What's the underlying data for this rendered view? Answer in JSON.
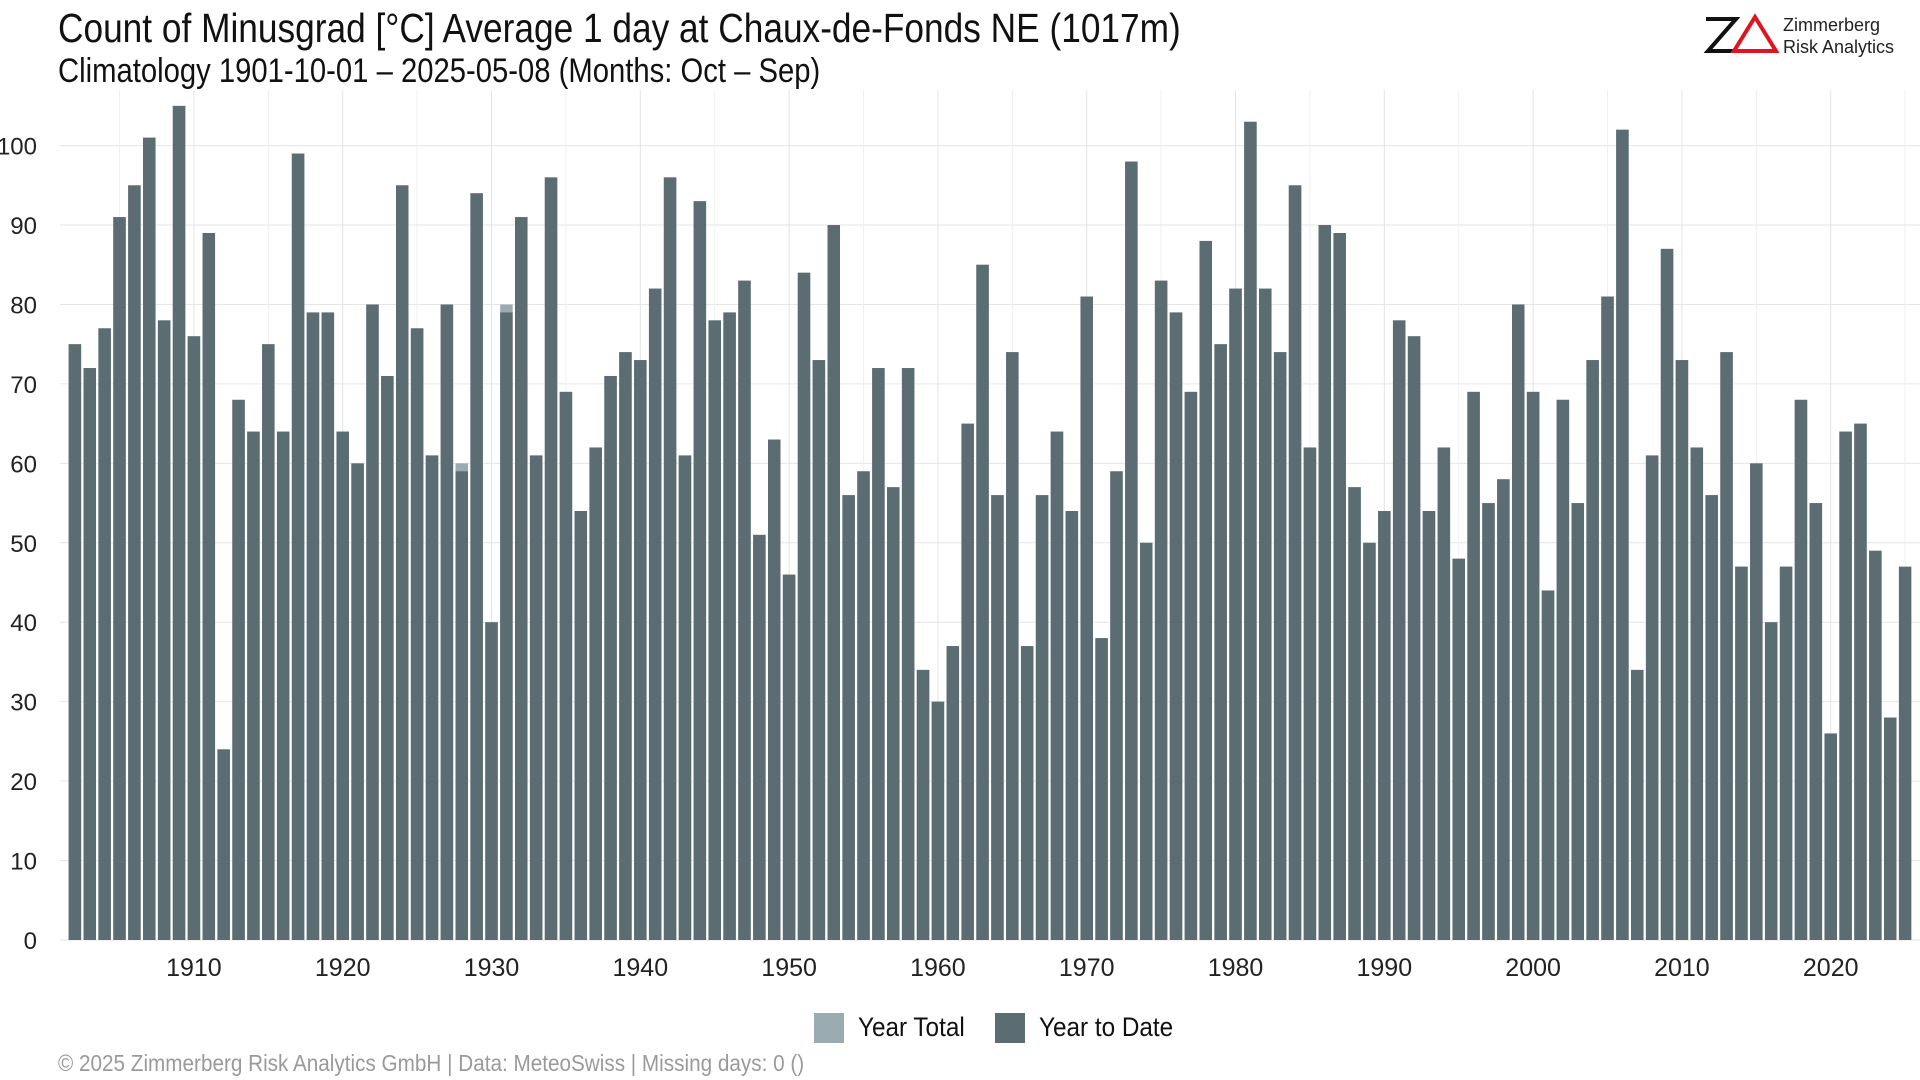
{
  "header": {
    "title": "Count of Minusgrad [°C] Average 1 day at Chaux-de-Fonds  NE (1017m)",
    "subtitle": "Climatology 1901-10-01 – 2025-05-08 (Months: Oct – Sep)"
  },
  "logo": {
    "mark": "ZΔ",
    "line1": "Zimmerberg",
    "line2": "Risk Analytics",
    "mark_color": "#111111",
    "delta_color": "#e0141e"
  },
  "legend": {
    "items": [
      {
        "label": "Year Total",
        "color": "#9aabb2"
      },
      {
        "label": "Year to Date",
        "color": "#5b6d73"
      }
    ]
  },
  "footer": {
    "text": "©  2025 Zimmerberg Risk Analytics GmbH | Data: MeteoSwiss | Missing days: 0 ()"
  },
  "chart_data": {
    "type": "bar",
    "title": "Count of Minusgrad [°C] Average 1 day at Chaux-de-Fonds  NE (1017m)",
    "subtitle": "Climatology 1901-10-01 – 2025-05-08 (Months: Oct – Sep)",
    "xlabel": "",
    "ylabel": "",
    "ylim": [
      0,
      107
    ],
    "xlim": [
      1901,
      2026
    ],
    "grid": true,
    "legend_position": "bottom",
    "y_ticks": [
      0,
      10,
      20,
      30,
      40,
      50,
      60,
      70,
      80,
      90,
      100
    ],
    "x_ticks": [
      1910,
      1920,
      1930,
      1940,
      1950,
      1960,
      1970,
      1980,
      1990,
      2000,
      2010,
      2020
    ],
    "colors": {
      "year_total": "#9aabb2",
      "year_to_date": "#5b6d73",
      "grid": "#e6e6e6",
      "tick_text": "#222222"
    },
    "x": [
      1902,
      1903,
      1904,
      1905,
      1906,
      1907,
      1908,
      1909,
      1910,
      1911,
      1912,
      1913,
      1914,
      1915,
      1916,
      1917,
      1918,
      1919,
      1920,
      1921,
      1922,
      1923,
      1924,
      1925,
      1926,
      1927,
      1928,
      1929,
      1930,
      1931,
      1932,
      1933,
      1934,
      1935,
      1936,
      1937,
      1938,
      1939,
      1940,
      1941,
      1942,
      1943,
      1944,
      1945,
      1946,
      1947,
      1948,
      1949,
      1950,
      1951,
      1952,
      1953,
      1954,
      1955,
      1956,
      1957,
      1958,
      1959,
      1960,
      1961,
      1962,
      1963,
      1964,
      1965,
      1966,
      1967,
      1968,
      1969,
      1970,
      1971,
      1972,
      1973,
      1974,
      1975,
      1976,
      1977,
      1978,
      1979,
      1980,
      1981,
      1982,
      1983,
      1984,
      1985,
      1986,
      1987,
      1988,
      1989,
      1990,
      1991,
      1992,
      1993,
      1994,
      1995,
      1996,
      1997,
      1998,
      1999,
      2000,
      2001,
      2002,
      2003,
      2004,
      2005,
      2006,
      2007,
      2008,
      2009,
      2010,
      2011,
      2012,
      2013,
      2014,
      2015,
      2016,
      2017,
      2018,
      2019,
      2020,
      2021,
      2022,
      2023,
      2024,
      2025
    ],
    "series": [
      {
        "name": "Year Total",
        "values": [
          75,
          72,
          77,
          91,
          95,
          101,
          78,
          105,
          76,
          89,
          24,
          68,
          64,
          75,
          64,
          99,
          79,
          79,
          64,
          60,
          80,
          71,
          95,
          77,
          61,
          80,
          60,
          94,
          40,
          80,
          91,
          61,
          96,
          69,
          54,
          62,
          71,
          74,
          73,
          82,
          96,
          61,
          93,
          78,
          79,
          83,
          51,
          63,
          46,
          84,
          73,
          90,
          56,
          59,
          72,
          57,
          72,
          34,
          30,
          37,
          65,
          85,
          56,
          74,
          37,
          56,
          64,
          54,
          81,
          38,
          59,
          98,
          50,
          83,
          79,
          69,
          88,
          75,
          82,
          103,
          82,
          74,
          95,
          62,
          90,
          89,
          57,
          50,
          54,
          78,
          76,
          54,
          62,
          48,
          69,
          55,
          58,
          80,
          69,
          44,
          68,
          55,
          73,
          81,
          102,
          34,
          61,
          87,
          73,
          62,
          56,
          74,
          47,
          60,
          40,
          47,
          68,
          55,
          26,
          64,
          65,
          49,
          28,
          null
        ]
      },
      {
        "name": "Year to Date",
        "values": [
          75,
          72,
          77,
          91,
          95,
          101,
          78,
          105,
          76,
          89,
          24,
          68,
          64,
          75,
          64,
          99,
          79,
          79,
          64,
          60,
          80,
          71,
          95,
          77,
          61,
          80,
          59,
          94,
          40,
          79,
          91,
          61,
          96,
          69,
          54,
          62,
          71,
          74,
          73,
          82,
          96,
          61,
          93,
          78,
          79,
          83,
          51,
          63,
          46,
          84,
          73,
          90,
          56,
          59,
          72,
          57,
          72,
          34,
          30,
          37,
          65,
          85,
          56,
          74,
          37,
          56,
          64,
          54,
          81,
          38,
          59,
          98,
          50,
          83,
          79,
          69,
          88,
          75,
          82,
          103,
          82,
          74,
          95,
          62,
          90,
          89,
          57,
          50,
          54,
          78,
          76,
          54,
          62,
          48,
          69,
          55,
          58,
          80,
          69,
          44,
          68,
          55,
          73,
          81,
          102,
          34,
          61,
          87,
          73,
          62,
          56,
          74,
          47,
          60,
          40,
          47,
          68,
          55,
          26,
          64,
          65,
          49,
          28,
          47
        ]
      }
    ]
  }
}
